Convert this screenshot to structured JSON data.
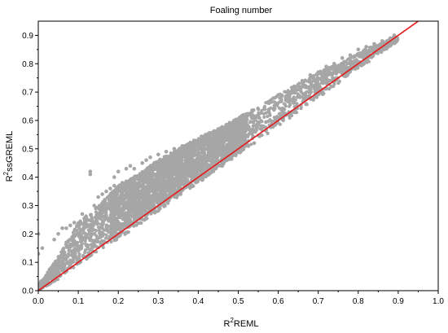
{
  "chart_data": {
    "type": "scatter",
    "title": "Foaling number",
    "xlabel": {
      "base": "R",
      "sup": "2",
      "rest": "REML"
    },
    "ylabel": {
      "base": "R",
      "sup": "2",
      "rest": "ssGREML"
    },
    "xlim": [
      0.0,
      1.0
    ],
    "ylim": [
      0.0,
      0.95
    ],
    "xticks": [
      "0.0",
      "0.1",
      "0.2",
      "0.3",
      "0.4",
      "0.5",
      "0.6",
      "0.7",
      "0.8",
      "0.9",
      "1.0"
    ],
    "yticks": [
      "0.0",
      "0.1",
      "0.2",
      "0.3",
      "0.4",
      "0.5",
      "0.6",
      "0.7",
      "0.8",
      "0.9"
    ],
    "grid": false,
    "point_color": "#a6a6a6",
    "line_color": "#e31a1c",
    "reference_line": {
      "x": [
        0.0,
        0.95
      ],
      "y": [
        0.0,
        0.95
      ]
    },
    "series": [
      {
        "band": [
          {
            "x": 0.0,
            "lo": 0.0,
            "hi": 0.02
          },
          {
            "x": 0.05,
            "lo": 0.04,
            "hi": 0.12
          },
          {
            "x": 0.1,
            "lo": 0.09,
            "hi": 0.24
          },
          {
            "x": 0.15,
            "lo": 0.14,
            "hi": 0.3
          },
          {
            "x": 0.2,
            "lo": 0.18,
            "hi": 0.37
          },
          {
            "x": 0.25,
            "lo": 0.23,
            "hi": 0.41
          },
          {
            "x": 0.3,
            "lo": 0.28,
            "hi": 0.46
          },
          {
            "x": 0.35,
            "lo": 0.33,
            "hi": 0.5
          },
          {
            "x": 0.4,
            "lo": 0.38,
            "hi": 0.54
          },
          {
            "x": 0.45,
            "lo": 0.43,
            "hi": 0.57
          },
          {
            "x": 0.5,
            "lo": 0.48,
            "hi": 0.61
          },
          {
            "x": 0.55,
            "lo": 0.53,
            "hi": 0.65
          },
          {
            "x": 0.6,
            "lo": 0.58,
            "hi": 0.69
          },
          {
            "x": 0.65,
            "lo": 0.63,
            "hi": 0.73
          },
          {
            "x": 0.7,
            "lo": 0.68,
            "hi": 0.77
          },
          {
            "x": 0.75,
            "lo": 0.73,
            "hi": 0.8
          },
          {
            "x": 0.8,
            "lo": 0.78,
            "hi": 0.84
          },
          {
            "x": 0.85,
            "lo": 0.83,
            "hi": 0.87
          },
          {
            "x": 0.9,
            "lo": 0.88,
            "hi": 0.9
          }
        ],
        "points": [
          [
            0.0,
            0.13
          ],
          [
            0.0,
            0.2
          ],
          [
            0.01,
            0.15
          ],
          [
            0.02,
            0.03
          ],
          [
            0.03,
            0.05
          ],
          [
            0.04,
            0.18
          ],
          [
            0.05,
            0.06
          ],
          [
            0.05,
            0.2
          ],
          [
            0.06,
            0.08
          ],
          [
            0.06,
            0.22
          ],
          [
            0.07,
            0.17
          ],
          [
            0.07,
            0.22
          ],
          [
            0.08,
            0.1
          ],
          [
            0.08,
            0.23
          ],
          [
            0.09,
            0.24
          ],
          [
            0.1,
            0.14
          ],
          [
            0.1,
            0.23
          ],
          [
            0.11,
            0.18
          ],
          [
            0.11,
            0.27
          ],
          [
            0.12,
            0.19
          ],
          [
            0.12,
            0.26
          ],
          [
            0.13,
            0.41
          ],
          [
            0.13,
            0.42
          ],
          [
            0.14,
            0.2
          ],
          [
            0.14,
            0.3
          ],
          [
            0.15,
            0.33
          ],
          [
            0.16,
            0.22
          ],
          [
            0.16,
            0.34
          ],
          [
            0.17,
            0.35
          ],
          [
            0.18,
            0.29
          ],
          [
            0.18,
            0.36
          ],
          [
            0.19,
            0.37
          ],
          [
            0.19,
            0.4
          ],
          [
            0.2,
            0.42
          ],
          [
            0.21,
            0.38
          ],
          [
            0.22,
            0.43
          ],
          [
            0.23,
            0.44
          ],
          [
            0.24,
            0.25
          ],
          [
            0.24,
            0.43
          ],
          [
            0.25,
            0.28
          ],
          [
            0.26,
            0.45
          ],
          [
            0.27,
            0.46
          ],
          [
            0.28,
            0.47
          ],
          [
            0.29,
            0.45
          ],
          [
            0.3,
            0.48
          ],
          [
            0.32,
            0.49
          ],
          [
            0.34,
            0.5
          ],
          [
            0.36,
            0.51
          ],
          [
            0.38,
            0.52
          ],
          [
            0.4,
            0.53
          ],
          [
            0.41,
            0.39
          ],
          [
            0.42,
            0.55
          ],
          [
            0.44,
            0.55
          ],
          [
            0.45,
            0.57
          ],
          [
            0.46,
            0.44
          ],
          [
            0.48,
            0.58
          ],
          [
            0.5,
            0.6
          ],
          [
            0.52,
            0.57
          ],
          [
            0.53,
            0.62
          ],
          [
            0.54,
            0.52
          ],
          [
            0.55,
            0.64
          ],
          [
            0.56,
            0.58
          ],
          [
            0.58,
            0.67
          ],
          [
            0.6,
            0.69
          ],
          [
            0.62,
            0.7
          ],
          [
            0.64,
            0.72
          ],
          [
            0.66,
            0.74
          ],
          [
            0.68,
            0.76
          ],
          [
            0.7,
            0.77
          ],
          [
            0.72,
            0.79
          ],
          [
            0.74,
            0.8
          ],
          [
            0.76,
            0.82
          ],
          [
            0.78,
            0.83
          ],
          [
            0.8,
            0.85
          ],
          [
            0.82,
            0.86
          ],
          [
            0.84,
            0.87
          ],
          [
            0.86,
            0.88
          ],
          [
            0.88,
            0.89
          ],
          [
            0.89,
            0.9
          ]
        ]
      }
    ]
  }
}
